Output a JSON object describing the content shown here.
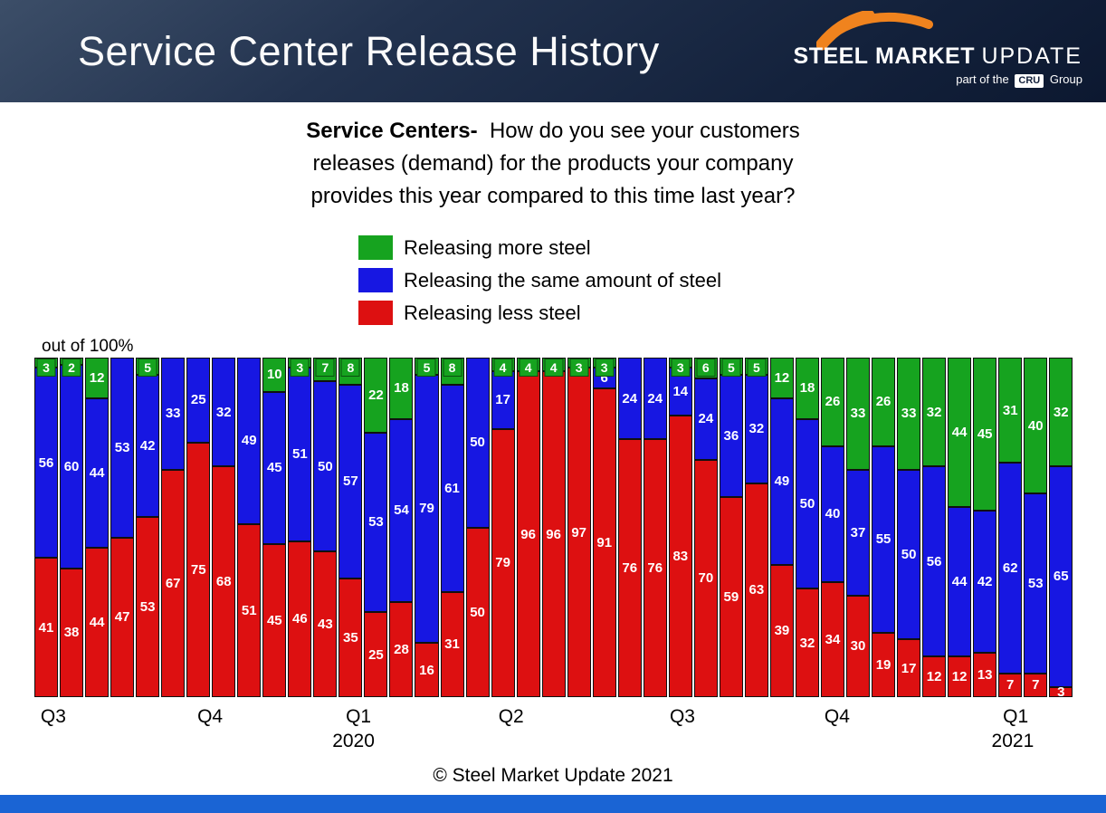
{
  "header": {
    "title": "Service Center Release History",
    "logo": {
      "steel": "STEEL",
      "market": "MARKET",
      "update": "UPDATE",
      "tagline_prefix": "part of the",
      "tagline_cru": "CRU",
      "tagline_suffix": "Group"
    }
  },
  "question": {
    "line1_bold": "Service Centers-",
    "line1_rest": "  How do you see your customers",
    "line2": "releases (demand) for the products your company",
    "line3": "provides this year compared to this time last year?"
  },
  "footer": {
    "copyright": "© Steel Market Update 2021"
  },
  "colors": {
    "header_bg": "#1c2b48",
    "accent_orange": "#f0831e",
    "bottom_strip": "#1a64d4",
    "green": "#16a31f",
    "blue": "#1717e2",
    "red": "#dd1011"
  },
  "chart_data": {
    "type": "bar",
    "stacked": true,
    "stack_total": 100,
    "title": "Service Center Release History",
    "unit_note": "out of 100%",
    "ylim": [
      0,
      100
    ],
    "bar_count": 41,
    "legend_position": "top-left",
    "series": [
      {
        "id": "more",
        "name": "Releasing more steel",
        "color": "#16a31f",
        "values": [
          3,
          2,
          12,
          0,
          5,
          0,
          0,
          0,
          0,
          10,
          3,
          7,
          8,
          22,
          18,
          5,
          8,
          0,
          4,
          4,
          4,
          3,
          3,
          0,
          0,
          3,
          6,
          5,
          5,
          12,
          18,
          26,
          33,
          26,
          33,
          32,
          44,
          45,
          31,
          40,
          32
        ]
      },
      {
        "id": "same",
        "name": "Releasing the same amount of steel",
        "color": "#1717e2",
        "values": [
          56,
          60,
          44,
          53,
          42,
          33,
          25,
          32,
          49,
          45,
          51,
          50,
          57,
          53,
          54,
          79,
          61,
          50,
          17,
          0,
          0,
          0,
          6,
          24,
          24,
          14,
          24,
          36,
          32,
          49,
          50,
          40,
          37,
          55,
          50,
          56,
          44,
          42,
          62,
          53,
          65
        ]
      },
      {
        "id": "less",
        "name": "Releasing less steel",
        "color": "#dd1011",
        "values": [
          41,
          38,
          44,
          47,
          53,
          67,
          75,
          68,
          51,
          45,
          46,
          43,
          35,
          25,
          28,
          16,
          31,
          50,
          79,
          96,
          96,
          97,
          91,
          76,
          76,
          83,
          70,
          59,
          63,
          39,
          32,
          34,
          30,
          19,
          17,
          12,
          12,
          13,
          7,
          7,
          3
        ]
      }
    ],
    "x_axis": {
      "ticks": [
        {
          "label": "Q3",
          "left_pct": 0.6
        },
        {
          "label": "Q4",
          "left_pct": 15.7
        },
        {
          "label": "Q1",
          "left_pct": 30.0
        },
        {
          "label": "Q2",
          "left_pct": 44.7
        },
        {
          "label": "Q3",
          "left_pct": 61.2
        },
        {
          "label": "Q4",
          "left_pct": 76.1
        },
        {
          "label": "Q1",
          "left_pct": 93.3
        }
      ],
      "years": [
        {
          "label": "2020",
          "left_pct": 28.7
        },
        {
          "label": "2021",
          "left_pct": 92.2
        }
      ]
    }
  }
}
